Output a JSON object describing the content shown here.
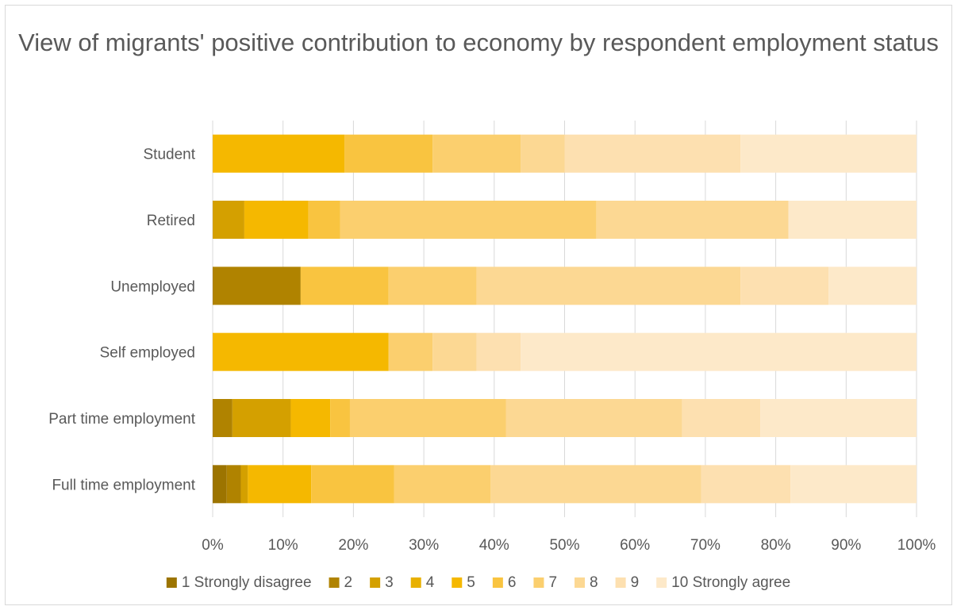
{
  "chart_data": {
    "type": "bar",
    "orientation": "horizontal",
    "stacked": "percent",
    "title": "View of migrants' positive contribution to economy by respondent employment status",
    "categories": [
      "Student",
      "Retired",
      "Unemployed",
      "Self employed",
      "Part time employment",
      "Full time employment"
    ],
    "xlim": [
      0,
      100
    ],
    "xticks": [
      "0%",
      "10%",
      "20%",
      "30%",
      "40%",
      "50%",
      "60%",
      "70%",
      "80%",
      "90%",
      "100%"
    ],
    "grid": true,
    "legend_position": "bottom",
    "series": [
      {
        "name": "1 Strongly disagree",
        "color": "#9c7400",
        "values": [
          0,
          0,
          0,
          0,
          0,
          2
        ]
      },
      {
        "name": "2",
        "color": "#b08300",
        "values": [
          0,
          0,
          12.5,
          0,
          2.8,
          2
        ]
      },
      {
        "name": "3",
        "color": "#d4a000",
        "values": [
          0,
          4.5,
          0,
          0,
          8.3,
          1
        ]
      },
      {
        "name": "4",
        "color": "#e8b000",
        "values": [
          0,
          0,
          0,
          0,
          0,
          0
        ]
      },
      {
        "name": "5",
        "color": "#f5b800",
        "values": [
          18.75,
          9.1,
          0,
          25,
          5.6,
          9
        ]
      },
      {
        "name": "6",
        "color": "#f9c440",
        "values": [
          12.5,
          4.5,
          12.5,
          0,
          2.8,
          11.8
        ]
      },
      {
        "name": "7",
        "color": "#fbcf6e",
        "values": [
          12.5,
          36.4,
          12.5,
          6.25,
          22.2,
          13.7
        ]
      },
      {
        "name": "8",
        "color": "#fcd893",
        "values": [
          6.25,
          27.3,
          37.5,
          6.25,
          25,
          29.9
        ]
      },
      {
        "name": "9",
        "color": "#fde0b0",
        "values": [
          25,
          0,
          12.5,
          6.25,
          11.1,
          12.7
        ]
      },
      {
        "name": "10 Strongly agree",
        "color": "#fde9c9",
        "values": [
          25,
          18.2,
          12.5,
          56.25,
          22.2,
          17.9
        ]
      }
    ]
  }
}
